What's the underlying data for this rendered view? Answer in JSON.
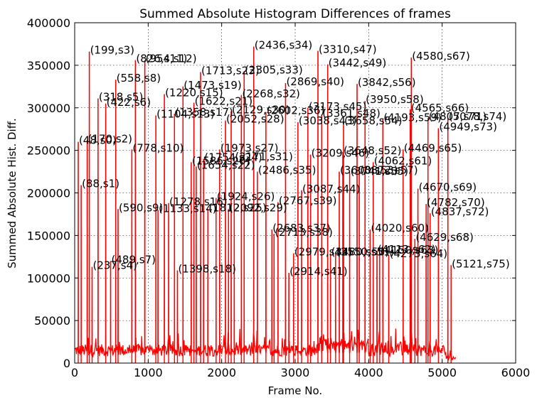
{
  "chart_data": {
    "type": "line",
    "title": "Summed Absolute Histogram Differences of frames",
    "xlabel": "Frame No.",
    "ylabel": "Summed Absolute Hist. Diff.",
    "xlim": [
      0,
      6000
    ],
    "ylim": [
      0,
      400000
    ],
    "xticks": [
      "0",
      "1000",
      "2000",
      "3000",
      "4000",
      "5000",
      "6000"
    ],
    "yticks": [
      "0",
      "50000",
      "100000",
      "150000",
      "200000",
      "250000",
      "300000",
      "350000",
      "400000"
    ],
    "grid": true,
    "series_color": "#ff0000",
    "baseline_frame_range": [
      0,
      5190
    ],
    "peaks": [
      {
        "label": "(48,s0)",
        "x": 48,
        "y": 260000
      },
      {
        "label": "(88,s1)",
        "x": 88,
        "y": 209000
      },
      {
        "label": "(170,s2)",
        "x": 170,
        "y": 262000
      },
      {
        "label": "(199,s3)",
        "x": 199,
        "y": 366000
      },
      {
        "label": "(237,s4)",
        "x": 237,
        "y": 113000
      },
      {
        "label": "(318,s5)",
        "x": 318,
        "y": 311000
      },
      {
        "label": "(422,s6)",
        "x": 422,
        "y": 305000
      },
      {
        "label": "(489,s7)",
        "x": 489,
        "y": 120000
      },
      {
        "label": "(558,s8)",
        "x": 558,
        "y": 333000
      },
      {
        "label": "(590,s9)",
        "x": 590,
        "y": 181000
      },
      {
        "label": "(778,s10)",
        "x": 778,
        "y": 251000
      },
      {
        "label": "(826,s11)",
        "x": 826,
        "y": 356000
      },
      {
        "label": "(954,s12)",
        "x": 954,
        "y": 356000
      },
      {
        "label": "(1104,s13)",
        "x": 1104,
        "y": 291000
      },
      {
        "label": "(1133,s14)",
        "x": 1133,
        "y": 180000
      },
      {
        "label": "(1220,s15)",
        "x": 1220,
        "y": 316000
      },
      {
        "label": "(1278,s16)",
        "x": 1278,
        "y": 188000
      },
      {
        "label": "(1358,s17)",
        "x": 1358,
        "y": 293000
      },
      {
        "label": "(1398,s18)",
        "x": 1398,
        "y": 109000
      },
      {
        "label": "(1473,s19)",
        "x": 1473,
        "y": 325000
      },
      {
        "label": "(1586,s20)",
        "x": 1586,
        "y": 236000
      },
      {
        "label": "(1622,s21)",
        "x": 1622,
        "y": 306000
      },
      {
        "label": "(1654,s22)",
        "x": 1654,
        "y": 231000
      },
      {
        "label": "(1713,s23)",
        "x": 1713,
        "y": 342000
      },
      {
        "label": "(1754,s24)",
        "x": 1754,
        "y": 240000
      },
      {
        "label": "(1812,s25)",
        "x": 1812,
        "y": 181000
      },
      {
        "label": "(1924,s26)",
        "x": 1924,
        "y": 194000
      },
      {
        "label": "(1973,s27)",
        "x": 1973,
        "y": 251000
      },
      {
        "label": "(2052,s28)",
        "x": 2052,
        "y": 285000
      },
      {
        "label": "(2092,s29)",
        "x": 2092,
        "y": 181000
      },
      {
        "label": "(2129,s30)",
        "x": 2129,
        "y": 296000
      },
      {
        "label": "(2171,s31)",
        "x": 2171,
        "y": 241000
      },
      {
        "label": "(2268,s32)",
        "x": 2268,
        "y": 315000
      },
      {
        "label": "(2305,s33)",
        "x": 2305,
        "y": 343000
      },
      {
        "label": "(2436,s34)",
        "x": 2436,
        "y": 372000
      },
      {
        "label": "(2486,s35)",
        "x": 2486,
        "y": 225000
      },
      {
        "label": "(2602,s36)",
        "x": 2602,
        "y": 295000
      },
      {
        "label": "(2683,s37)",
        "x": 2683,
        "y": 157000
      },
      {
        "label": "(2713,s38)",
        "x": 2713,
        "y": 152000
      },
      {
        "label": "(2767,s39)",
        "x": 2767,
        "y": 189000
      },
      {
        "label": "(2869,s40)",
        "x": 2869,
        "y": 329000
      },
      {
        "label": "(2914,s41)",
        "x": 2914,
        "y": 106000
      },
      {
        "label": "(2979,s42)",
        "x": 2979,
        "y": 129000
      },
      {
        "label": "(3038,s43)",
        "x": 3038,
        "y": 283000
      },
      {
        "label": "(3087,s44)",
        "x": 3087,
        "y": 203000
      },
      {
        "label": "(3173,s45)",
        "x": 3173,
        "y": 300000
      },
      {
        "label": "(3209,s46)",
        "x": 3209,
        "y": 245000
      },
      {
        "label": "(3310,s47)",
        "x": 3310,
        "y": 367000
      },
      {
        "label": "(3361,s48)",
        "x": 3361,
        "y": 292000
      },
      {
        "label": "(3442,s49)",
        "x": 3442,
        "y": 351000
      },
      {
        "label": "(3480,s50)",
        "x": 3480,
        "y": 129000
      },
      {
        "label": "(3550,s51)",
        "x": 3550,
        "y": 129000
      },
      {
        "label": "(3648,s52)",
        "x": 3648,
        "y": 248000
      },
      {
        "label": "(3600,s53)",
        "x": 3600,
        "y": 225000
      },
      {
        "label": "(3658,s54)",
        "x": 3658,
        "y": 283000
      },
      {
        "label": "(3741,s55)",
        "x": 3741,
        "y": 224000
      },
      {
        "label": "(3842,s56)",
        "x": 3842,
        "y": 328000
      },
      {
        "label": "(3872,s57)",
        "x": 3872,
        "y": 225000
      },
      {
        "label": "(3950,s58)",
        "x": 3950,
        "y": 308000
      },
      {
        "label": "(4193,s59)",
        "x": 4193,
        "y": 287000
      },
      {
        "label": "(4020,s60)",
        "x": 4020,
        "y": 157000
      },
      {
        "label": "(4062,s61)",
        "x": 4062,
        "y": 236000
      },
      {
        "label": "(4113,s62)",
        "x": 4113,
        "y": 132000
      },
      {
        "label": "(4150,s63)",
        "x": 4150,
        "y": 131000
      },
      {
        "label": "(4273,s64)",
        "x": 4273,
        "y": 127000
      },
      {
        "label": "(4469,s65)",
        "x": 4469,
        "y": 251000
      },
      {
        "label": "(4565,s66)",
        "x": 4565,
        "y": 298000
      },
      {
        "label": "(4580,s67)",
        "x": 4580,
        "y": 359000
      },
      {
        "label": "(4629,s68)",
        "x": 4629,
        "y": 146000
      },
      {
        "label": "(4670,s69)",
        "x": 4670,
        "y": 205000
      },
      {
        "label": "(4782,s70)",
        "x": 4782,
        "y": 187000
      },
      {
        "label": "(4807,s71)",
        "x": 4807,
        "y": 288000
      },
      {
        "label": "(4837,s72)",
        "x": 4837,
        "y": 176000
      },
      {
        "label": "(4949,s73)",
        "x": 4949,
        "y": 276000
      },
      {
        "label": "(5078,s74)",
        "x": 5078,
        "y": 288000
      },
      {
        "label": "(5121,s75)",
        "x": 5121,
        "y": 115000
      }
    ],
    "annotation_texts": [
      "(199,s3)",
      "(826,s11)",
      "(954,s12)",
      "(2436,s34)",
      "(3310,s47)",
      "(4580,s67)",
      "(558,s8)",
      "(1713,s23)",
      "(2305,s33)",
      "(3442,s49)",
      "(1473,s19)",
      "(2869,s40)",
      "(3842,s56)",
      "(318,s5)",
      "(1220,s15)",
      "(2268,s32)",
      "(422,s6)",
      "(1622,s21)",
      "(3950,s58)",
      "(1358,s17)",
      "(1104,s13)",
      "(3173,s45)",
      "(3361,s48)",
      "(2129,s30)",
      "(2602,s36)",
      "(4193,s59)",
      "(4565,s66)",
      "(4807,s71)",
      "(5078,s74)",
      "(2052,s28)",
      "(3038,s43)",
      "(3658,s54)",
      "(4949,s73)",
      "(48,s0)",
      "(170,s2)",
      "(778,s10)",
      "(1973,s27)",
      "(2171,s31)",
      "(3209,s46)",
      "(3648,s52)",
      "(4469,s65)",
      "(1586,s20)",
      "(1754,s24)",
      "(1654,s22)",
      "(4062,s61)",
      "(2486,s35)",
      "(3600,s53)",
      "(3741,s55)",
      "(3872,s57)",
      "(88,s1)",
      "(3087,s44)",
      "(4670,s69)",
      "(1924,s26)",
      "(1278,s16)",
      "(2767,s39)",
      "(4782,s70)",
      "(590,s9)",
      "(1133,s14)",
      "(1812,s25)",
      "(2092,s29)",
      "(4837,s72)",
      "(2683,s37)",
      "(2713,s38)",
      "(4020,s60)",
      "(4629,s68)",
      "(489,s7)",
      "(2979,s42)",
      "(3480,s50)",
      "(3550,s51)",
      "(4113,s62)",
      "(4150,s63)",
      "(4273,s64)",
      "(237,s4)",
      "(5121,s75)",
      "(1398,s18)",
      "(2914,s41)"
    ]
  }
}
